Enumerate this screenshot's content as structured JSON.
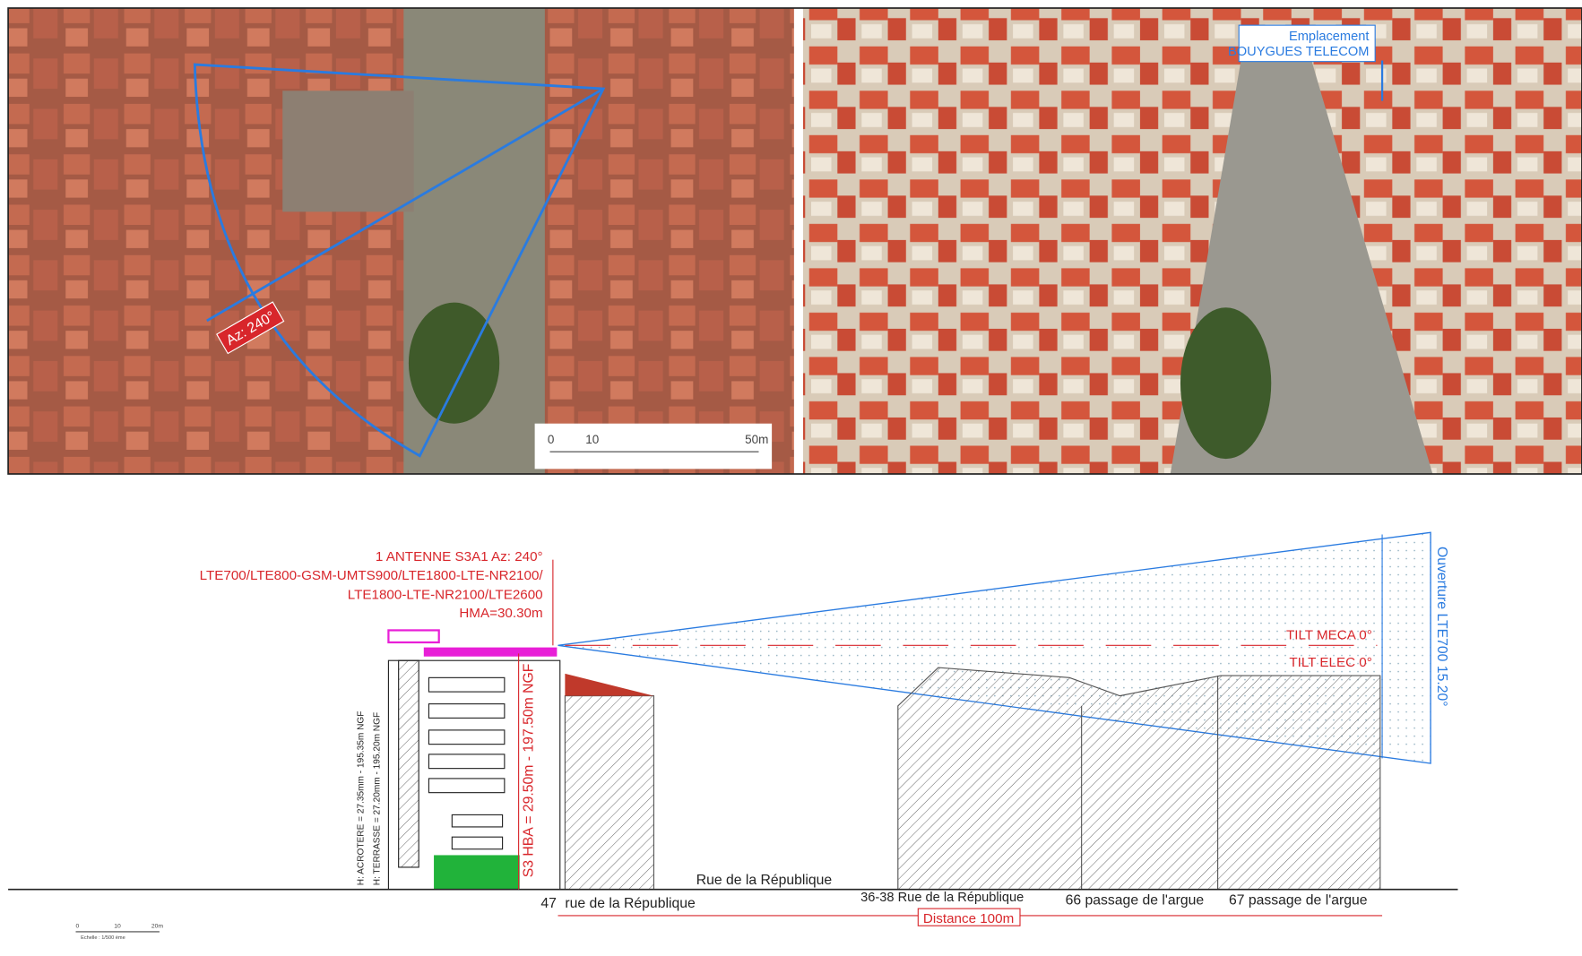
{
  "aerial_map": {
    "azimuth_label": "Az: 240°",
    "scale": [
      "0",
      "10",
      "50m"
    ]
  },
  "oblique_photo": {
    "marker": [
      "Emplacement",
      "BOUYGUES TELECOM"
    ]
  },
  "elevation": {
    "antenna_lines": [
      "1 ANTENNE S3A1 Az: 240°",
      "LTE700/LTE800-GSM-UMTS900/LTE1800-LTE-NR2100/",
      "LTE1800-LTE-NR2100/LTE2600",
      "HMA=30.30m"
    ],
    "tilt_meca": "TILT MECA 0°",
    "tilt_elec": "TILT ELEC 0°",
    "aperture": "Ouverture LTE700  15.20°",
    "acrotere": "H: ACROTERE = 27.35mm - 195.35m NGF",
    "terrasse": "H: TERRASSE = 27.20mm - 195.20m NGF",
    "hba": "S3 HBA = 29.50m - 197.50m NGF",
    "street": "Rue de la République",
    "addresses": [
      "47",
      "rue de la République",
      "36-38 Rue de la République",
      "66 passage de l'argue",
      "67 passage de l'argue"
    ],
    "distance": "Distance 100m",
    "scale": [
      "0",
      "10",
      "20m"
    ],
    "scale_caption": "Echelle : 1/500 ème"
  }
}
